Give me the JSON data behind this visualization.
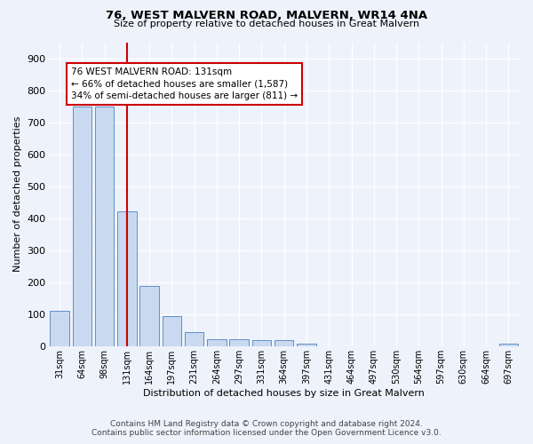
{
  "title": "76, WEST MALVERN ROAD, MALVERN, WR14 4NA",
  "subtitle": "Size of property relative to detached houses in Great Malvern",
  "xlabel": "Distribution of detached houses by size in Great Malvern",
  "ylabel": "Number of detached properties",
  "footer_line1": "Contains HM Land Registry data © Crown copyright and database right 2024.",
  "footer_line2": "Contains public sector information licensed under the Open Government Licence v3.0.",
  "bin_labels": [
    "31sqm",
    "64sqm",
    "98sqm",
    "131sqm",
    "164sqm",
    "197sqm",
    "231sqm",
    "264sqm",
    "297sqm",
    "331sqm",
    "364sqm",
    "397sqm",
    "431sqm",
    "464sqm",
    "497sqm",
    "530sqm",
    "564sqm",
    "597sqm",
    "630sqm",
    "664sqm",
    "697sqm"
  ],
  "bar_heights": [
    110,
    748,
    748,
    420,
    188,
    95,
    43,
    22,
    22,
    20,
    20,
    8,
    0,
    0,
    0,
    0,
    0,
    0,
    0,
    0,
    8
  ],
  "property_line_x": 3,
  "annotation_text": "76 WEST MALVERN ROAD: 131sqm\n← 66% of detached houses are smaller (1,587)\n34% of semi-detached houses are larger (811) →",
  "bar_color": "#c9d9f0",
  "bar_edge_color": "#6090c8",
  "line_color": "#cc0000",
  "annotation_box_color": "#cc0000",
  "background_color": "#eef2fb",
  "grid_color": "#ffffff",
  "ylim": [
    0,
    950
  ],
  "yticks": [
    0,
    100,
    200,
    300,
    400,
    500,
    600,
    700,
    800,
    900
  ],
  "title_fontsize": 9.5,
  "subtitle_fontsize": 8.0,
  "xlabel_fontsize": 8.0,
  "ylabel_fontsize": 8.0,
  "tick_fontsize": 8.0,
  "xtick_fontsize": 7.0,
  "annotation_fontsize": 7.5,
  "footer_fontsize": 6.5
}
